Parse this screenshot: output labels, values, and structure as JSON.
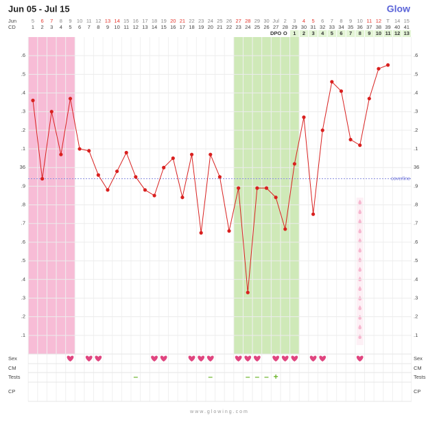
{
  "header": {
    "title": "Jun 05 - Jul 15",
    "logo": "Glow"
  },
  "chart_data": {
    "type": "line",
    "row_labels": {
      "date": "Jun",
      "cd": "CD",
      "dpo": "DPO"
    },
    "dates": [
      "5",
      "6",
      "7",
      "8",
      "9",
      "10",
      "11",
      "12",
      "13",
      "14",
      "15",
      "16",
      "17",
      "18",
      "19",
      "20",
      "21",
      "22",
      "23",
      "24",
      "25",
      "26",
      "27",
      "28",
      "29",
      "30",
      "Jul",
      "2",
      "3",
      "4",
      "5",
      "6",
      "7",
      "8",
      "9",
      "10",
      "11",
      "12",
      "T",
      "14",
      "15"
    ],
    "weekend": [
      false,
      true,
      true,
      false,
      false,
      false,
      false,
      false,
      true,
      true,
      false,
      false,
      false,
      false,
      false,
      true,
      true,
      false,
      false,
      false,
      false,
      false,
      true,
      true,
      false,
      false,
      false,
      false,
      false,
      true,
      true,
      false,
      false,
      false,
      false,
      false,
      true,
      true,
      false,
      false,
      false
    ],
    "weekend_color": "#e5332a",
    "categories": [
      1,
      2,
      3,
      4,
      5,
      6,
      7,
      8,
      9,
      10,
      11,
      12,
      13,
      14,
      15,
      16,
      17,
      18,
      19,
      20,
      21,
      22,
      23,
      24,
      25,
      26,
      27,
      28,
      29,
      30,
      31,
      32,
      33,
      34,
      35,
      36,
      37,
      38,
      39,
      40,
      41
    ],
    "dpo": [
      null,
      null,
      null,
      null,
      null,
      null,
      null,
      null,
      null,
      null,
      null,
      null,
      null,
      null,
      null,
      null,
      null,
      null,
      null,
      null,
      null,
      null,
      null,
      null,
      null,
      null,
      null,
      "O",
      1,
      2,
      3,
      4,
      5,
      6,
      7,
      8,
      9,
      10,
      11,
      12,
      13
    ],
    "values": [
      36.36,
      35.94,
      36.3,
      36.07,
      36.37,
      36.1,
      36.09,
      35.96,
      35.88,
      35.98,
      36.08,
      35.95,
      35.88,
      35.85,
      36.0,
      36.05,
      35.84,
      36.07,
      35.65,
      36.07,
      35.95,
      35.66,
      35.89,
      35.33,
      35.89,
      35.89,
      35.84,
      35.67,
      36.02,
      36.27,
      35.75,
      36.2,
      36.46,
      36.41,
      36.15,
      36.12,
      36.37,
      36.53,
      36.55,
      null,
      null
    ],
    "color": "#d9201f",
    "ylim": [
      35.0,
      36.7
    ],
    "yticks": [
      {
        "value": 35.1,
        "label": ".1"
      },
      {
        "value": 35.2,
        "label": ".2"
      },
      {
        "value": 35.3,
        "label": ".3"
      },
      {
        "value": 35.4,
        "label": ".4"
      },
      {
        "value": 35.5,
        "label": ".5"
      },
      {
        "value": 35.6,
        "label": ".6"
      },
      {
        "value": 35.7,
        "label": ".7"
      },
      {
        "value": 35.8,
        "label": ".8"
      },
      {
        "value": 35.9,
        "label": ".9"
      },
      36,
      {
        "value": 36.1,
        "label": ".1"
      },
      {
        "value": 36.2,
        "label": ".2"
      },
      {
        "value": 36.3,
        "label": ".3"
      },
      {
        "value": 36.4,
        "label": ".4"
      },
      {
        "value": 36.5,
        "label": ".5"
      },
      {
        "value": 36.6,
        "label": ".6"
      }
    ],
    "grid": true,
    "coverline": {
      "value": 35.94,
      "label": "coverline"
    },
    "rows": {
      "sex": "Sex",
      "cm": "CM",
      "tests": "Tests",
      "cp": "CP"
    },
    "sex_days": [
      5,
      7,
      8,
      14,
      15,
      18,
      19,
      20,
      23,
      24,
      25,
      27,
      28,
      29,
      31,
      32,
      36
    ],
    "tests": [
      {
        "day": 12,
        "result": "–"
      },
      {
        "day": 20,
        "result": "–"
      },
      {
        "day": 24,
        "result": "–"
      },
      {
        "day": 25,
        "result": "–"
      },
      {
        "day": 26,
        "result": "–"
      },
      {
        "day": 27,
        "result": "+"
      }
    ]
  },
  "footer": "www.glowing.com"
}
